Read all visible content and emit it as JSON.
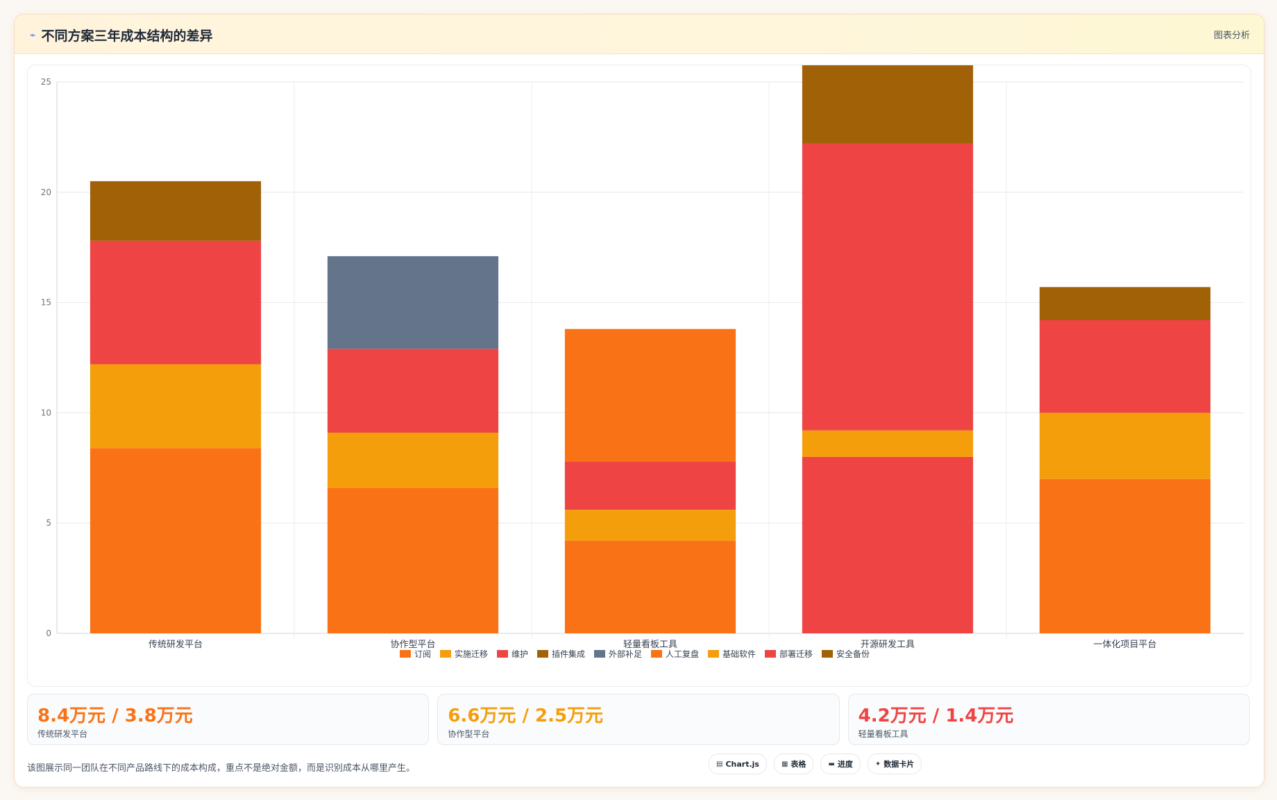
{
  "header": {
    "title": "不同方案三年成本结构的差异",
    "action_label": "图表分析"
  },
  "chart_data": {
    "type": "bar",
    "stacked": true,
    "title": "",
    "xlabel": "",
    "ylabel": "",
    "ylim": [
      0,
      25
    ],
    "yticks": [
      0,
      5,
      10,
      15,
      20,
      25
    ],
    "grid": true,
    "legend_position": "bottom",
    "categories": [
      "传统研发平台",
      "协作型平台",
      "轻量看板工具",
      "开源研发工具",
      "一体化项目平台"
    ],
    "series": [
      {
        "name": "订阅",
        "color": "#f97316",
        "values": [
          8.4,
          6.6,
          0,
          0,
          7.0
        ]
      },
      {
        "name": "实施迁移",
        "color": "#f59e0b",
        "values": [
          3.8,
          2.5,
          0,
          0,
          3.0
        ]
      },
      {
        "name": "维护",
        "color": "#ef4444",
        "values": [
          5.6,
          3.8,
          0,
          0,
          4.2
        ]
      },
      {
        "name": "插件集成",
        "color": "#a16207",
        "values": [
          2.7,
          0,
          0,
          0,
          1.5
        ]
      },
      {
        "name": "外部补足",
        "color": "#64748b",
        "values": [
          0,
          4.2,
          0,
          0,
          0
        ]
      },
      {
        "name": "人工复盘",
        "color": "#f97316",
        "values": [
          0,
          0,
          4.2,
          0,
          0
        ]
      },
      {
        "name": "基础软件",
        "color": "#f59e0b",
        "values": [
          0,
          0,
          1.4,
          1.2,
          0
        ]
      },
      {
        "name": "部署迁移",
        "color": "#ef4444",
        "values": [
          0,
          0,
          2.2,
          13.0,
          0
        ]
      },
      {
        "name": "安全备份",
        "color": "#a16207",
        "values": [
          0,
          0,
          0,
          3.6,
          0
        ]
      }
    ],
    "extra_segments": [
      {
        "category": "轻量看板工具",
        "series": "人工复盘",
        "value": 6.0,
        "order": "top"
      },
      {
        "category": "开源研发工具",
        "series": "部署迁移",
        "value": 8.0,
        "order": "bottom"
      }
    ]
  },
  "stats": [
    {
      "value": "8.4万元 / 3.8万元",
      "label": "传统研发平台",
      "color": "#f97316"
    },
    {
      "value": "6.6万元 / 2.5万元",
      "label": "协作型平台",
      "color": "#f59e0b"
    },
    {
      "value": "4.2万元 / 1.4万元",
      "label": "轻量看板工具",
      "color": "#ef4444"
    }
  ],
  "footer": {
    "note": "该图展示同一团队在不同产品路线下的成本构成，重点不是绝对金额，而是识别成本从哪里产生。",
    "tags": [
      {
        "icon": "chart-icon",
        "glyph": "▤",
        "label": "Chart.js"
      },
      {
        "icon": "table-icon",
        "glyph": "▦",
        "label": "表格"
      },
      {
        "icon": "progress-icon",
        "glyph": "▬",
        "label": "进度"
      },
      {
        "icon": "card-icon",
        "glyph": "✦",
        "label": "数据卡片"
      }
    ]
  }
}
